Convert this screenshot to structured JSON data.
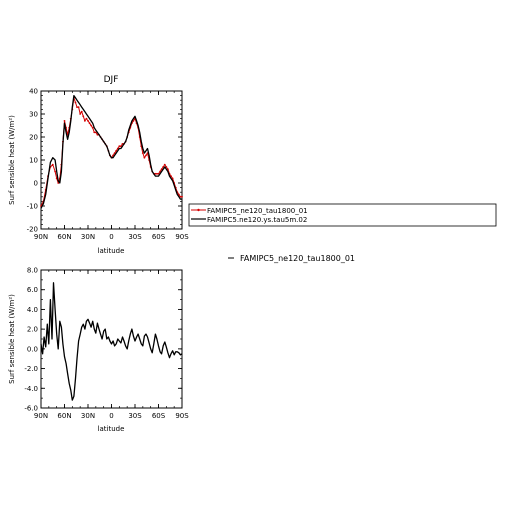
{
  "chart_data": [
    {
      "type": "line",
      "title": "DJF",
      "xlabel": "latitude",
      "ylabel": "Surf sensible heat (W/m²)",
      "xlim": [
        90,
        -90
      ],
      "ylim": [
        -20,
        40
      ],
      "x_tick_values": [
        90,
        60,
        30,
        0,
        -30,
        -60,
        -90
      ],
      "x_tick_labels": [
        "90N",
        "60N",
        "30N",
        "0",
        "30S",
        "60S",
        "90S"
      ],
      "y_tick_values": [
        -20,
        -10,
        0,
        10,
        20,
        30,
        40
      ],
      "y_tick_labels": [
        "-20",
        "-10",
        "0",
        "10",
        "20",
        "30",
        "40"
      ],
      "legend_position": "right",
      "x": [
        90,
        87,
        84,
        81,
        78,
        75,
        72,
        70,
        68,
        66,
        64,
        62,
        60,
        58,
        56,
        54,
        52,
        50,
        48,
        46,
        44,
        42,
        40,
        38,
        36,
        34,
        32,
        30,
        28,
        26,
        24,
        22,
        20,
        18,
        16,
        14,
        12,
        10,
        8,
        6,
        4,
        2,
        0,
        -2,
        -4,
        -6,
        -8,
        -10,
        -12,
        -14,
        -16,
        -18,
        -20,
        -22,
        -24,
        -26,
        -28,
        -30,
        -32,
        -34,
        -36,
        -38,
        -40,
        -42,
        -44,
        -46,
        -48,
        -50,
        -52,
        -54,
        -56,
        -58,
        -60,
        -62,
        -64,
        -66,
        -68,
        -70,
        -72,
        -74,
        -76,
        -78,
        -80,
        -82,
        -84,
        -86,
        -88,
        -90
      ],
      "series": [
        {
          "name": "FAMIPC5_ne120_tau1800_01",
          "color": "#d40000",
          "marker": "dot",
          "values": [
            -10,
            -8,
            -3,
            3,
            7,
            8,
            5,
            2,
            0,
            2,
            8,
            18,
            27,
            24,
            21,
            24,
            28,
            32,
            37,
            35,
            33,
            33,
            30,
            31,
            29,
            27,
            28,
            27,
            26,
            25,
            24,
            22,
            22,
            21,
            21,
            20,
            19,
            18,
            17,
            16,
            14,
            12,
            11,
            12,
            13,
            14,
            15,
            16,
            16,
            17,
            17,
            18,
            20,
            22,
            24,
            26,
            27,
            28,
            26,
            24,
            20,
            16,
            13,
            11,
            12,
            13,
            10,
            7,
            5,
            4,
            4,
            4,
            4,
            5,
            6,
            7,
            8,
            7,
            6,
            4,
            3,
            2,
            0,
            -2,
            -4,
            -5,
            -6,
            -6
          ]
        },
        {
          "name": "FAMIPC5.ne120.ys.tau5m.02",
          "color": "#000000",
          "marker": "none",
          "values": [
            -11,
            -9,
            -5,
            2,
            9,
            11,
            10,
            5,
            1,
            0,
            5,
            17,
            26,
            22,
            19,
            22,
            27,
            33,
            38,
            37,
            36,
            35,
            34,
            33,
            32,
            31,
            30,
            29,
            28,
            27,
            26,
            24,
            23,
            22,
            21,
            20,
            19,
            18,
            17,
            16,
            14,
            12,
            11,
            11,
            12,
            13,
            14,
            15,
            15,
            16,
            17,
            18,
            20,
            23,
            25,
            27,
            28,
            29,
            27,
            25,
            22,
            18,
            15,
            13,
            14,
            15,
            12,
            8,
            5,
            4,
            3,
            3,
            3,
            4,
            5,
            6,
            7,
            6,
            5,
            3,
            2,
            1,
            -1,
            -3,
            -5,
            -6,
            -7,
            -7
          ]
        }
      ]
    },
    {
      "type": "line",
      "title": "",
      "xlabel": "latitude",
      "ylabel": "Surf sensible heat (W/m²)",
      "xlim": [
        90,
        -90
      ],
      "ylim": [
        -6,
        8
      ],
      "x_tick_values": [
        90,
        60,
        30,
        0,
        -30,
        -60,
        -90
      ],
      "x_tick_labels": [
        "90N",
        "60N",
        "30N",
        "0",
        "30S",
        "60S",
        "90S"
      ],
      "y_tick_values": [
        -6,
        -4,
        -2,
        0,
        2,
        4,
        6,
        8
      ],
      "y_tick_labels": [
        "-6.0",
        "-4.0",
        "-2.0",
        "0.0",
        "2.0",
        "4.0",
        "6.0",
        "8.0"
      ],
      "legend_position": "right",
      "x": [
        90,
        88,
        86,
        84,
        82,
        80,
        78,
        76,
        74,
        72,
        70,
        68,
        66,
        64,
        62,
        60,
        58,
        56,
        54,
        52,
        50,
        48,
        46,
        44,
        42,
        40,
        38,
        36,
        34,
        32,
        30,
        28,
        26,
        24,
        22,
        20,
        18,
        16,
        14,
        12,
        10,
        8,
        6,
        4,
        2,
        0,
        -2,
        -4,
        -6,
        -8,
        -10,
        -12,
        -14,
        -16,
        -18,
        -20,
        -22,
        -24,
        -26,
        -28,
        -30,
        -32,
        -34,
        -36,
        -38,
        -40,
        -42,
        -44,
        -46,
        -48,
        -50,
        -52,
        -54,
        -56,
        -58,
        -60,
        -62,
        -64,
        -66,
        -68,
        -70,
        -72,
        -74,
        -76,
        -78,
        -80,
        -82,
        -84,
        -86,
        -88,
        -90
      ],
      "series": [
        {
          "name": "FAMIPC5_ne120_tau1800_01",
          "color": "#000000",
          "marker": "none",
          "values": [
            0.5,
            -0.5,
            1.2,
            0.2,
            2.5,
            0.5,
            5.0,
            1.0,
            6.7,
            4.0,
            1.5,
            0.0,
            2.8,
            2.2,
            0.5,
            -0.8,
            -1.5,
            -2.5,
            -3.5,
            -4.2,
            -5.2,
            -4.8,
            -3.0,
            -1.0,
            0.8,
            1.5,
            2.2,
            2.5,
            2.0,
            2.8,
            3.0,
            2.6,
            2.2,
            2.8,
            2.0,
            1.6,
            2.6,
            2.0,
            1.5,
            1.0,
            1.8,
            2.0,
            1.0,
            1.2,
            0.8,
            0.5,
            0.8,
            0.3,
            0.5,
            1.0,
            0.8,
            0.6,
            1.2,
            0.8,
            0.3,
            0.0,
            0.8,
            1.5,
            2.0,
            1.3,
            0.8,
            1.2,
            1.5,
            1.0,
            0.5,
            0.3,
            1.3,
            1.5,
            1.2,
            0.6,
            0.0,
            -0.4,
            0.5,
            1.5,
            1.0,
            0.3,
            -0.3,
            -0.5,
            0.3,
            0.7,
            0.2,
            -0.4,
            -0.9,
            -0.5,
            -0.2,
            -0.6,
            -0.3,
            -0.3,
            -0.4,
            -0.6,
            -0.5
          ]
        }
      ]
    }
  ]
}
